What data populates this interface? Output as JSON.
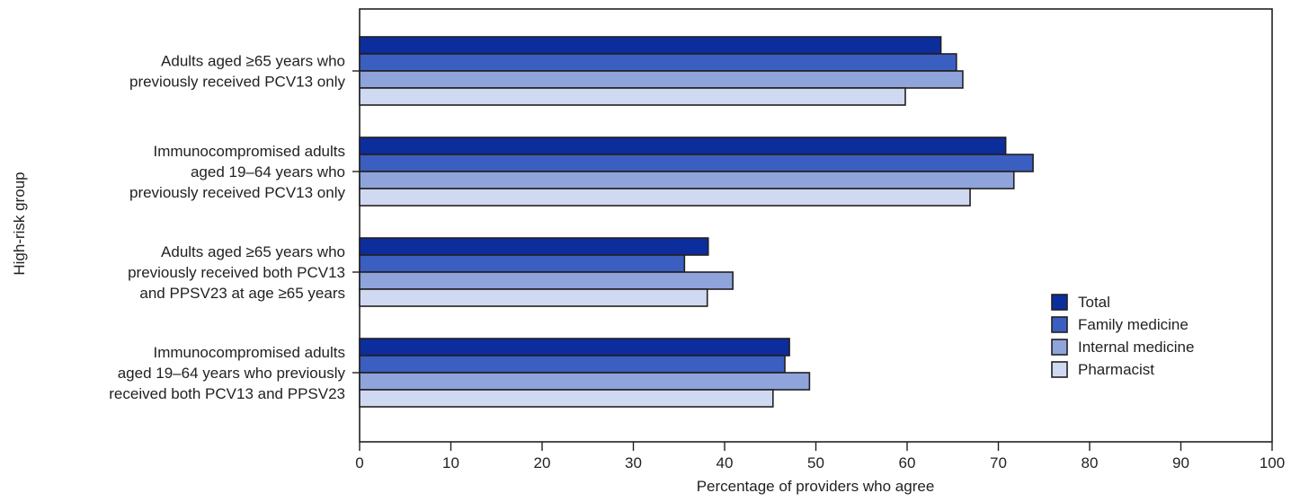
{
  "chart_data": {
    "type": "bar",
    "orientation": "horizontal",
    "ylabel": "High-risk group",
    "xlabel": "Percentage of providers who agree",
    "xlim": [
      0,
      100
    ],
    "xticks": [
      "0",
      "10",
      "20",
      "30",
      "40",
      "50",
      "60",
      "70",
      "80",
      "90",
      "100"
    ],
    "grid": false,
    "legend_position": "bottom-right",
    "categories": [
      [
        "Adults aged ≥65 years who",
        "previously received PCV13 only"
      ],
      [
        "Immunocompromised adults",
        "aged 19–64 years who",
        "previously received PCV13 only"
      ],
      [
        "Adults aged ≥65 years who",
        "previously received both PCV13",
        "and PPSV23 at age ≥65 years "
      ],
      [
        "Immunocompromised adults",
        "aged 19–64 years who previously",
        "received both PCV13 and PPSV23"
      ]
    ],
    "series": [
      {
        "name": "Total",
        "color": "#0c2d9c",
        "values": [
          63.7,
          70.8,
          38.2,
          47.1
        ]
      },
      {
        "name": "Family medicine",
        "color": "#3a5fc0",
        "values": [
          65.4,
          73.8,
          35.6,
          46.6
        ]
      },
      {
        "name": "Internal medicine",
        "color": "#8ea4db",
        "values": [
          66.1,
          71.7,
          40.9,
          49.3
        ]
      },
      {
        "name": "Pharmacist",
        "color": "#cfd9f1",
        "values": [
          59.8,
          66.9,
          38.1,
          45.3
        ]
      }
    ]
  }
}
